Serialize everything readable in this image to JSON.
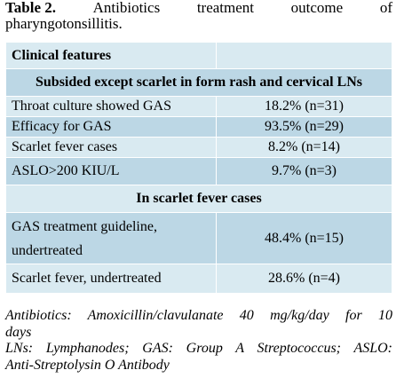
{
  "caption": {
    "label": "Table 2.",
    "words": [
      "Antibiotics",
      "treatment",
      "outcome",
      "of"
    ],
    "line2": "pharyngotonsillitis."
  },
  "table": {
    "header": {
      "col1": "Clinical features",
      "col2": ""
    },
    "section1_title": "Subsided except scarlet in form rash and cervical LNs",
    "section1_rows": [
      {
        "feature": "Throat culture showed GAS",
        "value": "18.2% (n=31)"
      },
      {
        "feature": "Efficacy for GAS",
        "value": "93.5% (n=29)"
      },
      {
        "feature": "Scarlet fever cases",
        "value": "8.2% (n=14)"
      },
      {
        "feature": "ASLO>200 KIU/L",
        "value": "9.7% (n=3)"
      }
    ],
    "section2_title": "In scarlet fever cases",
    "section2_rows": [
      {
        "feature_line1": "GAS treatment guideline,",
        "feature_line2": "undertreated",
        "value": "48.4% (n=15)"
      },
      {
        "feature": "Scarlet fever, undertreated",
        "value": "28.6% (n=4)"
      }
    ]
  },
  "footnotes": {
    "line1a": "Antibiotics: Amoxicillin/clavulanate 40 mg/kg/day for 10",
    "line1b": "days",
    "line2a": "LNs: Lymphanodes; GAS: Group A Streptococcus; ASLO:",
    "line2b": "Anti-Streptolysin O Antibody"
  }
}
